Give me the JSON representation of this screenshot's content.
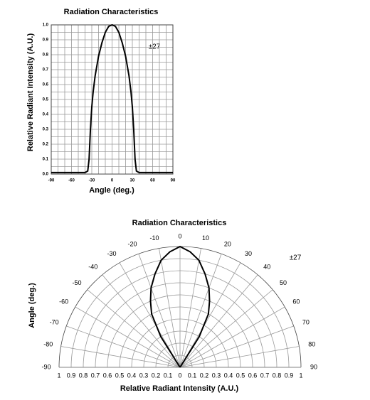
{
  "chart_data": [
    {
      "type": "line",
      "title": "Radiation Characteristics",
      "x_label": "Angle (deg.)",
      "y_label": "Relative Radiant Intensity (A.U.)",
      "annotation": "±27",
      "x": [
        -90,
        -60,
        -40,
        -36,
        -34,
        -32,
        -30,
        -28,
        -25,
        -20,
        -15,
        -10,
        -5,
        0,
        5,
        10,
        15,
        20,
        25,
        28,
        30,
        32,
        34,
        36,
        40,
        60,
        90
      ],
      "values": [
        0.01,
        0.01,
        0.01,
        0.02,
        0.1,
        0.3,
        0.45,
        0.55,
        0.66,
        0.79,
        0.88,
        0.95,
        0.99,
        1.0,
        0.99,
        0.95,
        0.88,
        0.79,
        0.66,
        0.55,
        0.45,
        0.3,
        0.1,
        0.02,
        0.01,
        0.01,
        0.01
      ],
      "color": "#000000",
      "xlim": [
        -90,
        90
      ],
      "xticks": [
        -90,
        -60,
        -30,
        0,
        30,
        60,
        90
      ],
      "ylim": [
        0,
        1
      ],
      "yticks": [
        {
          "value": 0,
          "label": "0.0"
        },
        0.1,
        0.2,
        0.3,
        0.4,
        0.5,
        0.6,
        0.7,
        0.8,
        0.9,
        {
          "value": 1,
          "label": "1.0"
        }
      ],
      "grid": true
    },
    {
      "type": "polar",
      "title": "Radiation Characteristics",
      "r_label": "Relative Radiant Intensity (A.U.)",
      "theta_label": "Angle (deg.)",
      "annotation": "±27",
      "theta": [
        -36,
        -32,
        -28,
        -24,
        -20,
        -15,
        -10,
        -5,
        0,
        5,
        10,
        15,
        20,
        24,
        28,
        32,
        36
      ],
      "r": [
        0,
        0.3,
        0.5,
        0.6,
        0.7,
        0.8,
        0.9,
        0.96,
        1.0,
        0.96,
        0.9,
        0.8,
        0.7,
        0.6,
        0.5,
        0.3,
        0
      ],
      "color": "#000000",
      "rlim": [
        0,
        1
      ],
      "rticks": [
        0,
        0.1,
        0.2,
        0.3,
        0.4,
        0.5,
        0.6,
        0.7,
        0.8,
        0.9,
        1
      ],
      "thetaticks": [
        -90,
        -80,
        -70,
        -60,
        -50,
        -40,
        -30,
        -20,
        -10,
        0,
        10,
        20,
        30,
        40,
        50,
        60,
        70,
        80,
        90
      ],
      "grid": true
    }
  ]
}
